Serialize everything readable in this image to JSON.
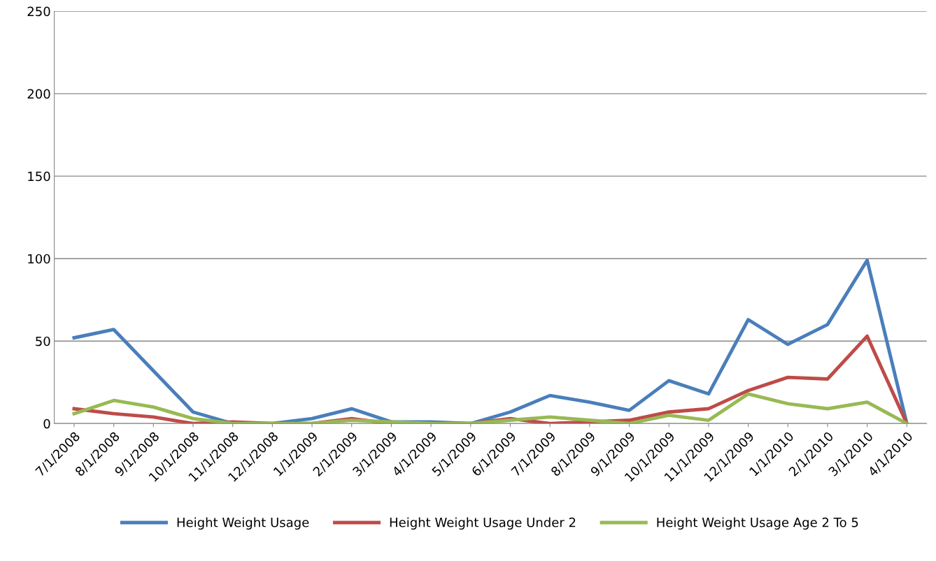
{
  "chart_data": {
    "type": "line",
    "categories": [
      "7/1/2008",
      "8/1/2008",
      "9/1/2008",
      "10/1/2008",
      "11/1/2008",
      "12/1/2008",
      "1/1/2009",
      "2/1/2009",
      "3/1/2009",
      "4/1/2009",
      "5/1/2009",
      "6/1/2009",
      "7/1/2009",
      "8/1/2009",
      "9/1/2009",
      "10/1/2009",
      "11/1/2009",
      "12/1/2009",
      "1/1/2010",
      "2/1/2010",
      "3/1/2010",
      "4/1/2010"
    ],
    "series": [
      {
        "name": "Height Weight Usage",
        "color": "#4a7ebb",
        "values": [
          52,
          57,
          32,
          7,
          0,
          0,
          3,
          9,
          1,
          1,
          0,
          7,
          17,
          13,
          8,
          26,
          18,
          63,
          48,
          60,
          99,
          0
        ]
      },
      {
        "name": "Height Weight Usage Under 2",
        "color": "#be4b48",
        "values": [
          9,
          6,
          4,
          0,
          1,
          0,
          0,
          3,
          0,
          0,
          0,
          3,
          0,
          1,
          2,
          7,
          9,
          20,
          28,
          27,
          53,
          0
        ]
      },
      {
        "name": "Height Weight Usage Age 2 To 5",
        "color": "#98b954",
        "values": [
          6,
          14,
          10,
          3,
          0,
          0,
          0,
          2,
          1,
          0,
          0,
          2,
          4,
          2,
          0,
          5,
          2,
          18,
          12,
          9,
          13,
          0
        ]
      }
    ],
    "ylim": [
      0,
      250
    ],
    "yticks": [
      0,
      50,
      100,
      150,
      200,
      250
    ],
    "grid": "y",
    "legend": "bottom",
    "marker": "none",
    "line_style": "solid"
  }
}
